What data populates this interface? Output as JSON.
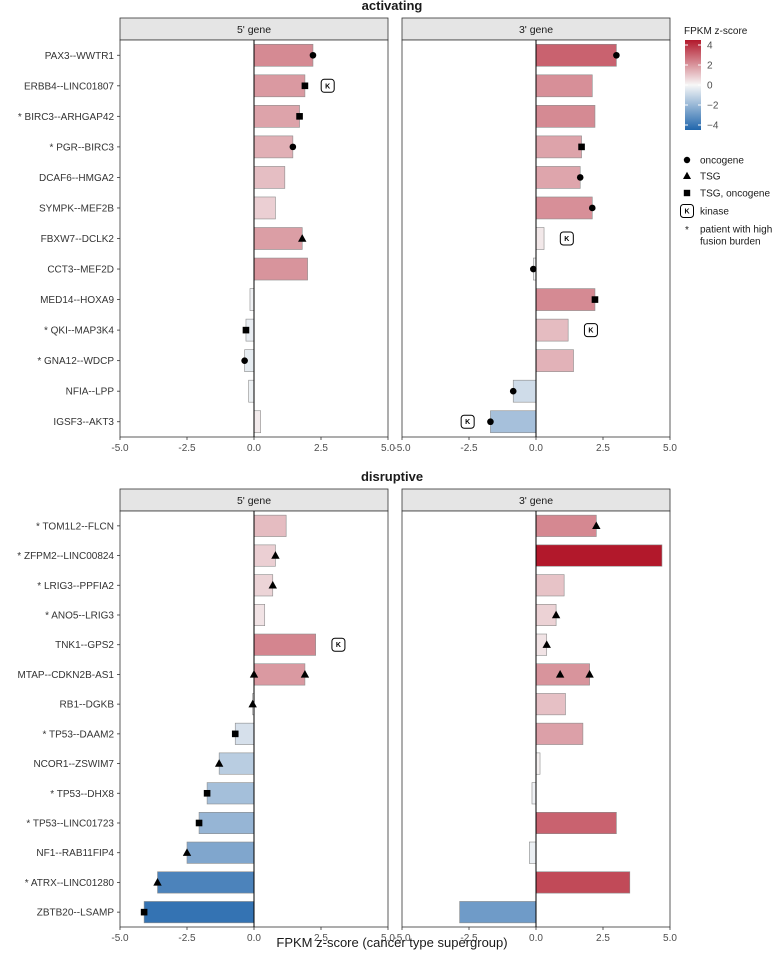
{
  "chart_data": {
    "type": "bar",
    "orientation": "horizontal",
    "xlabel": "FPKM z-score (cancer type supergroup)",
    "xlim": [
      -5,
      5
    ],
    "xticks": [
      -5,
      -2.5,
      0,
      2.5,
      5
    ],
    "xtick_labels": [
      "-5.0",
      "-2.5",
      "0.0",
      "2.5",
      "5.0"
    ],
    "facet_labels": [
      "5' gene",
      "3' gene"
    ],
    "color_scale": {
      "title": "FPKM z-score",
      "range": [
        -4.5,
        4.5
      ],
      "ticks": [
        4,
        2,
        0,
        -2,
        -4
      ],
      "tick_labels": [
        "4",
        "2",
        "0",
        "−2",
        "−4"
      ],
      "low_color": "#2166ac",
      "mid_color": "#f7f7f7",
      "high_color": "#b2182b"
    },
    "legend": [
      {
        "shape": "circle",
        "label": "oncogene"
      },
      {
        "shape": "triangle",
        "label": "TSG"
      },
      {
        "shape": "square",
        "label": "TSG, oncogene"
      },
      {
        "shape": "kbox",
        "label": "kinase"
      },
      {
        "shape": "asterisk",
        "label": "patient with high fusion burden"
      }
    ],
    "kinase_symbol": "K",
    "high_burden_symbol": "*",
    "panels": [
      {
        "title": "activating",
        "rows": [
          {
            "name": "PAX3--WWTR1",
            "star": false,
            "five": 2.2,
            "five_mk": [
              "circle"
            ],
            "five_k": false,
            "three": 3.0,
            "three_mk": [
              "circle"
            ],
            "three_k": false
          },
          {
            "name": "ERBB4--LINC01807",
            "star": false,
            "five": 1.9,
            "five_mk": [
              "square"
            ],
            "five_k": true,
            "three": 2.1,
            "three_mk": [],
            "three_k": false
          },
          {
            "name": "BIRC3--ARHGAP42",
            "star": true,
            "five": 1.7,
            "five_mk": [
              "square"
            ],
            "five_k": false,
            "three": 2.2,
            "three_mk": [],
            "three_k": false
          },
          {
            "name": "PGR--BIRC3",
            "star": true,
            "five": 1.45,
            "five_mk": [
              "circle"
            ],
            "five_k": false,
            "three": 1.7,
            "three_mk": [
              "square"
            ],
            "three_k": false
          },
          {
            "name": "DCAF6--HMGA2",
            "star": false,
            "five": 1.15,
            "five_mk": [],
            "five_k": false,
            "three": 1.65,
            "three_mk": [
              "circle"
            ],
            "three_k": false
          },
          {
            "name": "SYMPK--MEF2B",
            "star": false,
            "five": 0.8,
            "five_mk": [],
            "five_k": false,
            "three": 2.1,
            "three_mk": [
              "circle"
            ],
            "three_k": false
          },
          {
            "name": "FBXW7--DCLK2",
            "star": false,
            "five": 1.8,
            "five_mk": [
              "triangle"
            ],
            "five_k": false,
            "three": 0.3,
            "three_mk": [],
            "three_k": true
          },
          {
            "name": "CCT3--MEF2D",
            "star": false,
            "five": 2.0,
            "five_mk": [],
            "five_k": false,
            "three": -0.1,
            "three_mk": [
              "circle"
            ],
            "three_k": false
          },
          {
            "name": "MED14--HOXA9",
            "star": false,
            "five": -0.15,
            "five_mk": [],
            "five_k": false,
            "three": 2.2,
            "three_mk": [
              "square"
            ],
            "three_k": false
          },
          {
            "name": "QKI--MAP3K4",
            "star": true,
            "five": -0.3,
            "five_mk": [
              "square"
            ],
            "five_k": false,
            "three": 1.2,
            "three_mk": [],
            "three_k": true
          },
          {
            "name": "GNA12--WDCP",
            "star": true,
            "five": -0.35,
            "five_mk": [
              "circle"
            ],
            "five_k": false,
            "three": 1.4,
            "three_mk": [],
            "three_k": false
          },
          {
            "name": "NFIA--LPP",
            "star": false,
            "five": -0.2,
            "five_mk": [],
            "five_k": false,
            "three": -0.85,
            "three_mk": [
              "circle"
            ],
            "three_k": false
          },
          {
            "name": "IGSF3--AKT3",
            "star": false,
            "five": 0.25,
            "five_mk": [],
            "five_k": false,
            "three": -1.7,
            "three_mk": [
              "circle"
            ],
            "three_k": true
          }
        ]
      },
      {
        "title": "disruptive",
        "rows": [
          {
            "name": "TOM1L2--FLCN",
            "star": true,
            "five": 1.2,
            "five_mk": [],
            "five_k": false,
            "three": 2.25,
            "three_mk": [
              "triangle"
            ],
            "three_k": false
          },
          {
            "name": "ZFPM2--LINC00824",
            "star": true,
            "five": 0.8,
            "five_mk": [
              "triangle"
            ],
            "five_k": false,
            "three": 4.7,
            "three_mk": [],
            "three_k": false
          },
          {
            "name": "LRIG3--PPFIA2",
            "star": true,
            "five": 0.7,
            "five_mk": [
              "triangle"
            ],
            "five_k": false,
            "three": 1.05,
            "three_mk": [],
            "three_k": false
          },
          {
            "name": "ANO5--LRIG3",
            "star": true,
            "five": 0.4,
            "five_mk": [],
            "five_k": false,
            "three": 0.75,
            "three_mk": [
              "triangle"
            ],
            "three_k": false
          },
          {
            "name": "TNK1--GPS2",
            "star": false,
            "five": 2.3,
            "five_mk": [],
            "five_k": true,
            "three": 0.4,
            "three_mk": [
              "triangle"
            ],
            "three_k": false
          },
          {
            "name": "MTAP--CDKN2B-AS1",
            "star": false,
            "five": 1.9,
            "five_mk": [
              "triangle",
              "triangle@0"
            ],
            "five_k": false,
            "three": 2.0,
            "three_mk": [
              "triangle",
              "triangle@0.9"
            ],
            "three_k": false
          },
          {
            "name": "RB1--DGKB",
            "star": false,
            "five": -0.05,
            "five_mk": [
              "triangle"
            ],
            "five_k": false,
            "three": 1.1,
            "three_mk": [],
            "three_k": false
          },
          {
            "name": "TP53--DAAM2",
            "star": true,
            "five": -0.7,
            "five_mk": [
              "square"
            ],
            "five_k": false,
            "three": 1.75,
            "three_mk": [],
            "three_k": false
          },
          {
            "name": "NCOR1--ZSWIM7",
            "star": false,
            "five": -1.3,
            "five_mk": [
              "triangle"
            ],
            "five_k": false,
            "three": 0.15,
            "three_mk": [],
            "three_k": false
          },
          {
            "name": "TP53--DHX8",
            "star": true,
            "five": -1.75,
            "five_mk": [
              "square"
            ],
            "five_k": false,
            "three": -0.15,
            "three_mk": [],
            "three_k": false
          },
          {
            "name": "TP53--LINC01723",
            "star": true,
            "five": -2.05,
            "five_mk": [
              "square"
            ],
            "five_k": false,
            "three": 3.0,
            "three_mk": [],
            "three_k": false
          },
          {
            "name": "NF1--RAB11FIP4",
            "star": false,
            "five": -2.5,
            "five_mk": [
              "triangle"
            ],
            "five_k": false,
            "three": -0.25,
            "three_mk": [],
            "three_k": false
          },
          {
            "name": "ATRX--LINC01280",
            "star": true,
            "five": -3.6,
            "five_mk": [
              "triangle"
            ],
            "five_k": false,
            "three": 3.5,
            "three_mk": [],
            "three_k": false
          },
          {
            "name": "ZBTB20--LSAMP",
            "star": false,
            "five": -4.1,
            "five_mk": [
              "square"
            ],
            "five_k": false,
            "three": -2.85,
            "three_mk": [],
            "three_k": false
          }
        ]
      }
    ]
  }
}
